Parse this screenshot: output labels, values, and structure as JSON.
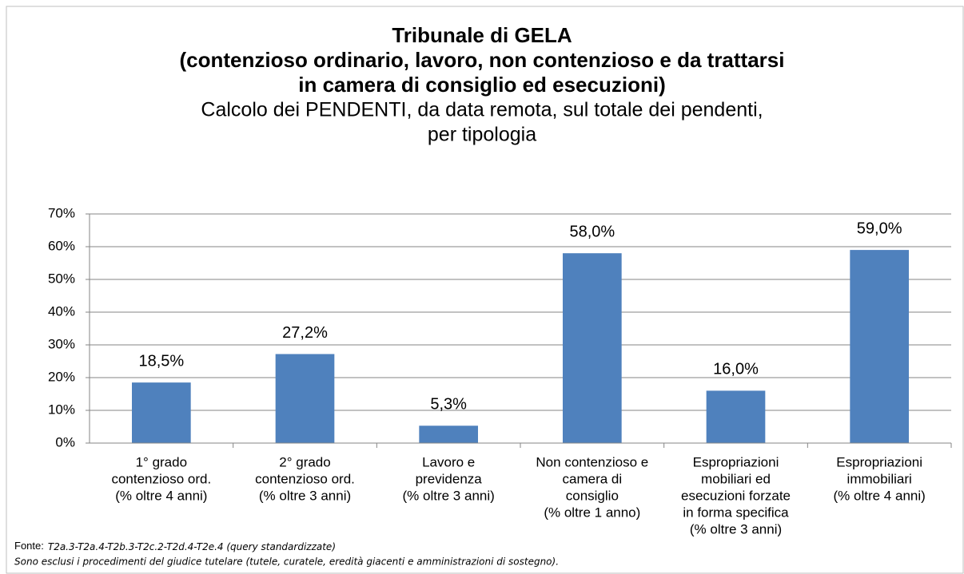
{
  "chart_data": {
    "type": "bar",
    "title": [
      "Tribunale di GELA",
      "(contenzioso ordinario, lavoro, non contenzioso e da trattarsi",
      "in camera di consiglio ed esecuzioni)"
    ],
    "subtitle": [
      "Calcolo dei PENDENTI, da data remota, sul totale dei pendenti,",
      "per tipologia"
    ],
    "categories": [
      [
        "1° grado",
        "contenzioso ord.",
        "(% oltre 4 anni)"
      ],
      [
        "2° grado",
        "contenzioso ord.",
        "(% oltre 3 anni)"
      ],
      [
        "Lavoro e",
        "previdenza",
        "(% oltre 3 anni)"
      ],
      [
        "Non contenzioso e",
        "camera di",
        "consiglio",
        "(% oltre 1 anno)"
      ],
      [
        "Espropriazioni",
        "mobiliari ed",
        "esecuzioni forzate",
        "in forma specifica",
        "(% oltre 3 anni)"
      ],
      [
        "Espropriazioni",
        "immobiliari",
        "(% oltre 4 anni)"
      ]
    ],
    "values": [
      18.5,
      27.2,
      5.3,
      58.0,
      16.0,
      59.0
    ],
    "value_labels": [
      "18,5%",
      "27,2%",
      "5,3%",
      "58,0%",
      "16,0%",
      "59,0%"
    ],
    "color": "#4f81bd",
    "ylim": [
      0,
      70
    ],
    "yticks": [
      {
        "value": 0,
        "label": "0%"
      },
      {
        "value": 10,
        "label": "10%"
      },
      {
        "value": 20,
        "label": "20%"
      },
      {
        "value": 30,
        "label": "30%"
      },
      {
        "value": 40,
        "label": "40%"
      },
      {
        "value": 50,
        "label": "50%"
      },
      {
        "value": 60,
        "label": "60%"
      },
      {
        "value": 70,
        "label": "70%"
      }
    ],
    "grid": true,
    "source_label": "Fonte:",
    "source": "T2a.3-T2a.4-T2b.3-T2c.2-T2d.4-T2e.4 (query standardizzate)",
    "note": "Sono esclusi i procedimenti del giudice tutelare (tutele, curatele, eredità giacenti e amministrazioni di sostegno)."
  }
}
